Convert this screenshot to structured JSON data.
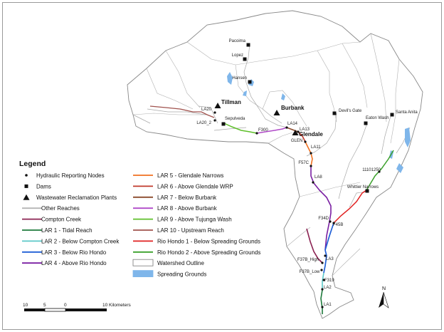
{
  "legend": {
    "title": "Legend",
    "left_items": [
      {
        "kind": "node",
        "label": "Hydraulic Reporting Nodes"
      },
      {
        "kind": "dam",
        "label": "Dams"
      },
      {
        "kind": "plant",
        "label": "Wastewater Reclamation Plants"
      },
      {
        "kind": "line",
        "color": "#b5b5b5",
        "label": "Other Reaches"
      },
      {
        "kind": "line",
        "color": "#8b2252",
        "label": "Compton Creek"
      },
      {
        "kind": "line",
        "color": "#1e7a3c",
        "label": "LAR 1 - Tidal Reach"
      },
      {
        "kind": "line",
        "color": "#5bc8c8",
        "label": "LAR 2 - Below Compton Creek"
      },
      {
        "kind": "line",
        "color": "#1f5fd6",
        "label": "LAR 3 - Below Rio Hondo"
      },
      {
        "kind": "line",
        "color": "#7a1fa2",
        "label": "LAR 4 - Above Rio Hondo"
      }
    ],
    "right_items": [
      {
        "kind": "line",
        "color": "#f07020",
        "label": "LAR 5 - Glendale Narrows"
      },
      {
        "kind": "line",
        "color": "#c0392b",
        "label": "LAR 6 - Above Glendale WRP"
      },
      {
        "kind": "line",
        "color": "#8b4a2b",
        "label": "LAR 7 - Below Burbank"
      },
      {
        "kind": "line",
        "color": "#b04ac8",
        "label": "LAR 8 - Above Burbank"
      },
      {
        "kind": "line",
        "color": "#5fbf2a",
        "label": "LAR 9 - Above Tujunga Wash"
      },
      {
        "kind": "line",
        "color": "#a0524d",
        "label": "LAR 10 - Upstream Reach"
      },
      {
        "kind": "line",
        "color": "#e02020",
        "label": "Rio Hondo 1 - Below Spreading Grounds"
      },
      {
        "kind": "line",
        "color": "#3aa02a",
        "label": "Rio Hondo 2 - Above Spreading Grounds"
      },
      {
        "kind": "box",
        "fill": "#ffffff",
        "stroke": "#777777",
        "label": "Watershed Outline"
      },
      {
        "kind": "box",
        "fill": "#7fb6ea",
        "stroke": "#7fb6ea",
        "label": "Spreading Grounds"
      }
    ]
  },
  "plants": [
    {
      "label": "Tillman"
    },
    {
      "label": "Burbank"
    },
    {
      "label": "Glendale"
    }
  ],
  "dams": [
    {
      "label": "Pacoima"
    },
    {
      "label": "Lopez"
    },
    {
      "label": "Hansen"
    },
    {
      "label": "Sepulveda"
    },
    {
      "label": "Devil's Gate"
    },
    {
      "label": "Eaton Wash"
    },
    {
      "label": "Santa Anita"
    },
    {
      "label": "Whittier Narrows"
    }
  ],
  "nodes": [
    {
      "label": "LA20"
    },
    {
      "label": "LA20_2"
    },
    {
      "label": "F300"
    },
    {
      "label": "LA14"
    },
    {
      "label": "LA13"
    },
    {
      "label": "GLEN"
    },
    {
      "label": "LA11"
    },
    {
      "label": "F57C"
    },
    {
      "label": "LA8"
    },
    {
      "label": "11101250"
    },
    {
      "label": "F34D"
    },
    {
      "label": "F45B"
    },
    {
      "label": "F37B_High"
    },
    {
      "label": "LA3"
    },
    {
      "label": "F37B_Low"
    },
    {
      "label": "F319"
    },
    {
      "label": "LA2"
    },
    {
      "label": "LA1"
    }
  ],
  "scalebar": {
    "ticks": [
      "10",
      "5",
      "0",
      "10 Kilometers"
    ]
  },
  "north_arrow": {
    "label": "N"
  }
}
